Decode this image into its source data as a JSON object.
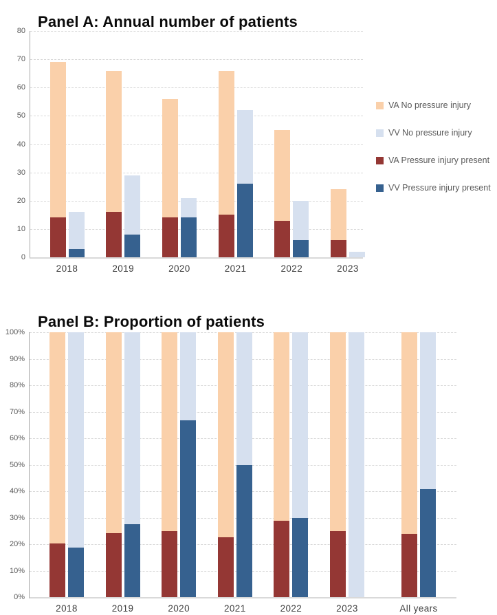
{
  "figure": {
    "panel_a_title": "Panel A: Annual number of patients",
    "panel_b_title": "Panel B: Proportion of patients"
  },
  "colors": {
    "va_no_pi": "#FAD0AA",
    "vv_no_pi": "#D6E0EF",
    "va_pi": "#943734",
    "vv_pi": "#36618F",
    "gridline": "#D9D9D9",
    "axis_line": "#A6A6A6",
    "tick_text": "#595959",
    "category_text": "#3F3F3F"
  },
  "legend": {
    "items": [
      {
        "label": "VA No pressure injury",
        "color_key": "va_no_pi"
      },
      {
        "label": "VV No pressure injury",
        "color_key": "vv_no_pi"
      },
      {
        "label": "VA Pressure injury present",
        "color_key": "va_pi"
      },
      {
        "label": "VV Pressure injury present",
        "color_key": "vv_pi"
      }
    ]
  },
  "chart_data": [
    {
      "id": "panel_a",
      "type": "bar",
      "subtype": "clustered-stacked",
      "title": "Panel A: Annual number of patients",
      "xlabel": "",
      "ylabel": "",
      "categories": [
        "2018",
        "2019",
        "2020",
        "2021",
        "2022",
        "2023"
      ],
      "ylim": [
        0,
        80
      ],
      "ytick_step": 10,
      "ytick_suffix": "",
      "grid": "horizontal-dashed",
      "legend_position": "right",
      "series": [
        {
          "name": "VA Pressure injury present",
          "stack": "VA",
          "position": "bottom",
          "color_key": "va_pi",
          "values": [
            14,
            16,
            14,
            15,
            13,
            6
          ]
        },
        {
          "name": "VA No pressure injury",
          "stack": "VA",
          "position": "top",
          "color_key": "va_no_pi",
          "values": [
            55,
            50,
            42,
            51,
            32,
            18
          ]
        },
        {
          "name": "VV Pressure injury present",
          "stack": "VV",
          "position": "bottom",
          "color_key": "vv_pi",
          "values": [
            3,
            8,
            14,
            26,
            6,
            0
          ]
        },
        {
          "name": "VV No pressure injury",
          "stack": "VV",
          "position": "top",
          "color_key": "vv_no_pi",
          "values": [
            13,
            21,
            7,
            26,
            14,
            2
          ]
        }
      ],
      "stack_totals": {
        "VA": [
          69,
          66,
          56,
          66,
          45,
          24
        ],
        "VV": [
          16,
          29,
          21,
          52,
          20,
          2
        ]
      }
    },
    {
      "id": "panel_b",
      "type": "bar",
      "subtype": "100%-stacked",
      "title": "Panel B: Proportion of patients",
      "xlabel": "",
      "ylabel": "",
      "categories": [
        "2018",
        "2019",
        "2020",
        "2021",
        "2022",
        "2023",
        "All years"
      ],
      "ylim": [
        0,
        100
      ],
      "ytick_step": 10,
      "ytick_suffix": "%",
      "grid": "horizontal-dashed",
      "legend_position": "none",
      "series": [
        {
          "name": "VA Pressure injury present",
          "stack": "VA",
          "position": "bottom",
          "color_key": "va_pi",
          "values": [
            20.3,
            24.2,
            25.0,
            22.7,
            28.9,
            25.0,
            23.9
          ]
        },
        {
          "name": "VA No pressure injury",
          "stack": "VA",
          "position": "top",
          "color_key": "va_no_pi",
          "values": [
            79.7,
            75.8,
            75.0,
            77.3,
            71.1,
            75.0,
            76.1
          ]
        },
        {
          "name": "VV Pressure injury present",
          "stack": "VV",
          "position": "bottom",
          "color_key": "vv_pi",
          "values": [
            18.8,
            27.6,
            66.7,
            50.0,
            30.0,
            0.0,
            40.7
          ]
        },
        {
          "name": "VV No pressure injury",
          "stack": "VV",
          "position": "top",
          "color_key": "vv_no_pi",
          "values": [
            81.2,
            72.4,
            33.3,
            50.0,
            70.0,
            100.0,
            59.3
          ]
        }
      ]
    }
  ]
}
